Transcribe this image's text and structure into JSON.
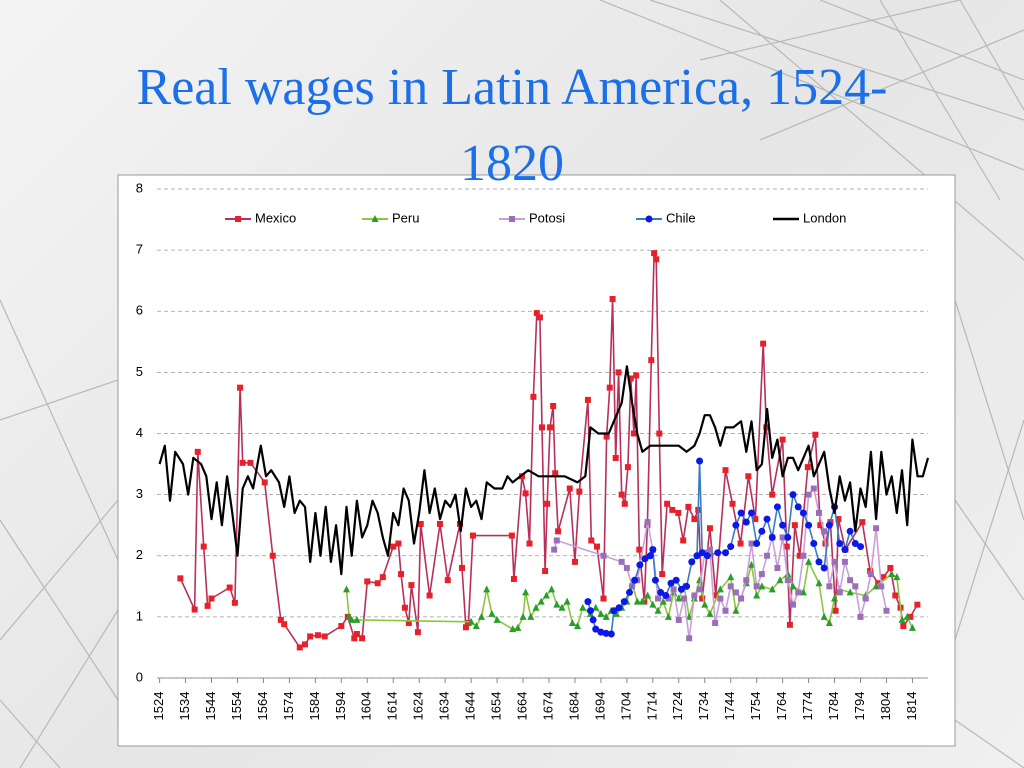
{
  "chart_data": {
    "type": "line",
    "title": "Real wages in Latin America, 1524-1820",
    "xlim": [
      1523,
      1820
    ],
    "xticks": [
      1524,
      1534,
      1544,
      1554,
      1564,
      1574,
      1584,
      1594,
      1604,
      1614,
      1624,
      1634,
      1644,
      1654,
      1664,
      1674,
      1684,
      1694,
      1704,
      1714,
      1724,
      1734,
      1744,
      1754,
      1764,
      1774,
      1784,
      1794,
      1804,
      1814
    ],
    "ylim": [
      0,
      8
    ],
    "yticks": [
      0,
      1,
      2,
      3,
      4,
      5,
      6,
      7,
      8
    ],
    "grid": true,
    "legend": "top",
    "series": [
      {
        "name": "Mexico",
        "color": "#b8305a",
        "marker_color": "#e8202a",
        "marker": "square",
        "x": [
          1532,
          1537.5,
          1538.7,
          1541,
          1542.5,
          1544,
          1551,
          1553,
          1555,
          1556,
          1559,
          1564.5,
          1567.6,
          1570.7,
          1572,
          1578,
          1580,
          1582,
          1585,
          1587.6,
          1594,
          1596.5,
          1599,
          1600,
          1602,
          1604,
          1608,
          1610,
          1614,
          1616,
          1617,
          1618.5,
          1620,
          1621,
          1623.5,
          1624.6,
          1628,
          1632,
          1635,
          1639.7,
          1640.5,
          1642,
          1643,
          1644.7,
          1659.7,
          1660.5,
          1663.6,
          1665,
          1666.5,
          1668,
          1669.3,
          1670.5,
          1671.3,
          1672.5,
          1673.3,
          1674.4,
          1675.6,
          1676.4,
          1677.5,
          1682,
          1684,
          1685.7,
          1689,
          1690.3,
          1692.5,
          1695,
          1696.2,
          1697.4,
          1698.5,
          1699.7,
          1700.8,
          1702,
          1703.2,
          1704.4,
          1705.5,
          1706.7,
          1707.6,
          1708.8,
          1710.7,
          1711.9,
          1713.4,
          1714.5,
          1715.3,
          1716.5,
          1717.6,
          1719.5,
          1721.5,
          1723.8,
          1725.7,
          1727.7,
          1730,
          1731.5,
          1733,
          1736,
          1738.2,
          1742,
          1744.7,
          1747.8,
          1750.8,
          1753.5,
          1756.5,
          1757.7,
          1760,
          1764,
          1765.6,
          1766.8,
          1768.7,
          1770.6,
          1773.7,
          1776.6,
          1778.5,
          1780.5,
          1782.4,
          1784.4,
          1785.5,
          1788.2,
          1794.7,
          1797.7,
          1800.8,
          1802.8,
          1805.5,
          1807.4,
          1809.4,
          1810.5,
          1813.2,
          1815.9
        ],
        "values": [
          1.63,
          1.12,
          3.7,
          2.15,
          1.18,
          1.3,
          1.48,
          1.23,
          4.75,
          3.52,
          3.52,
          3.2,
          2.0,
          0.95,
          0.88,
          0.5,
          0.55,
          0.68,
          0.7,
          0.68,
          0.85,
          1.0,
          0.65,
          0.72,
          0.65,
          1.58,
          1.55,
          1.65,
          2.15,
          2.2,
          1.7,
          1.15,
          0.9,
          1.52,
          0.75,
          2.52,
          1.35,
          2.52,
          1.6,
          2.52,
          1.8,
          0.83,
          0.9,
          2.33,
          2.33,
          1.62,
          3.3,
          3.02,
          2.2,
          4.6,
          5.97,
          5.9,
          4.1,
          1.75,
          2.85,
          4.1,
          4.45,
          3.35,
          2.4,
          3.1,
          1.9,
          3.05,
          4.55,
          2.25,
          2.15,
          1.3,
          3.95,
          4.75,
          6.2,
          3.6,
          5.0,
          3.0,
          2.85,
          3.45,
          4.9,
          4.0,
          4.95,
          2.1,
          1.25,
          2.5,
          5.2,
          6.95,
          6.85,
          4.0,
          1.7,
          2.85,
          2.75,
          2.7,
          2.25,
          2.8,
          2.6,
          2.75,
          1.3,
          2.45,
          1.35,
          3.4,
          2.85,
          2.2,
          3.3,
          2.6,
          5.47,
          4.1,
          3.0,
          3.9,
          2.15,
          0.87,
          2.5,
          2.0,
          3.45,
          3.98,
          2.5,
          2.2,
          2.55,
          1.1,
          2.6,
          2.1,
          2.55,
          1.75,
          1.55,
          1.65,
          1.8,
          1.35,
          1.15,
          0.85,
          1.0,
          1.2
        ]
      },
      {
        "name": "Peru",
        "color": "#8dc63f",
        "marker_color": "#2a9d2a",
        "marker": "triangle",
        "x": [
          1596,
          1597,
          1598,
          1600,
          1644,
          1646,
          1648,
          1650,
          1652,
          1654,
          1660,
          1662,
          1664,
          1665,
          1667,
          1669,
          1671,
          1673,
          1675,
          1677,
          1679,
          1681,
          1683,
          1685,
          1687,
          1690,
          1692,
          1694,
          1696,
          1698,
          1700,
          1702,
          1704,
          1706,
          1708,
          1710,
          1712,
          1714,
          1716,
          1718,
          1720,
          1722,
          1724,
          1726,
          1728,
          1730,
          1732,
          1734,
          1736,
          1740,
          1744,
          1746,
          1750,
          1752,
          1754,
          1756,
          1760,
          1763,
          1766,
          1768,
          1772,
          1774,
          1778,
          1780,
          1782,
          1784,
          1786,
          1790,
          1796,
          1800,
          1806,
          1808,
          1810,
          1812,
          1814
        ],
        "values": [
          1.45,
          1.0,
          0.95,
          0.95,
          0.92,
          0.85,
          1.0,
          1.45,
          1.05,
          0.95,
          0.8,
          0.82,
          1.0,
          1.4,
          1.0,
          1.15,
          1.25,
          1.35,
          1.45,
          1.2,
          1.15,
          1.25,
          0.9,
          0.85,
          1.15,
          1.05,
          1.15,
          1.05,
          1.0,
          1.1,
          1.05,
          1.15,
          1.25,
          1.55,
          1.25,
          1.25,
          1.35,
          1.2,
          1.1,
          1.25,
          1.0,
          1.4,
          1.3,
          1.5,
          1.0,
          1.3,
          1.6,
          1.2,
          1.05,
          1.45,
          1.65,
          1.1,
          1.55,
          1.85,
          1.35,
          1.5,
          1.45,
          1.6,
          1.7,
          1.5,
          1.4,
          1.9,
          1.55,
          1.0,
          0.9,
          1.3,
          1.45,
          1.4,
          1.35,
          1.5,
          1.7,
          1.65,
          0.95,
          1.0,
          0.82
        ]
      },
      {
        "name": "Potosi",
        "color": "#c9a0dc",
        "marker_color": "#9b6fb8",
        "marker": "square",
        "x": [
          1676,
          1677,
          1695,
          1702,
          1704,
          1706,
          1708,
          1712,
          1714,
          1716,
          1720,
          1722,
          1724,
          1726,
          1728,
          1730,
          1732,
          1734,
          1736,
          1738,
          1740,
          1742,
          1744,
          1746,
          1748,
          1750,
          1752,
          1754,
          1756,
          1758,
          1760,
          1762,
          1764,
          1766,
          1768,
          1770,
          1772,
          1774,
          1776,
          1778,
          1780,
          1782,
          1784,
          1786,
          1788,
          1790,
          1792,
          1794,
          1796,
          1798,
          1800,
          1802,
          1804
        ],
        "values": [
          2.1,
          2.25,
          2.0,
          1.9,
          1.8,
          1.5,
          1.6,
          2.55,
          2.1,
          1.3,
          1.3,
          1.45,
          0.95,
          1.3,
          0.65,
          1.35,
          1.45,
          2.05,
          2.1,
          0.9,
          1.3,
          1.1,
          1.5,
          1.4,
          1.3,
          1.6,
          2.2,
          1.5,
          1.7,
          2.0,
          2.3,
          1.8,
          2.3,
          1.6,
          1.2,
          1.4,
          2.0,
          3.0,
          3.1,
          2.7,
          2.4,
          1.5,
          1.9,
          1.4,
          1.9,
          1.6,
          1.5,
          1.0,
          1.3,
          1.7,
          2.45,
          1.5,
          1.1
        ]
      },
      {
        "name": "Chile",
        "color": "#3a7cc2",
        "marker_color": "#0a18e8",
        "marker": "circle",
        "x": [
          1689,
          1690,
          1691,
          1692,
          1694,
          1696,
          1698,
          1699,
          1701,
          1703,
          1705,
          1707,
          1709,
          1711,
          1713,
          1714,
          1715,
          1717,
          1719,
          1721,
          1723,
          1725,
          1727,
          1729,
          1731,
          1732,
          1733,
          1735,
          1739,
          1742,
          1744,
          1746,
          1748,
          1750,
          1752,
          1754,
          1756,
          1758,
          1760,
          1762,
          1764,
          1766,
          1768,
          1770,
          1772,
          1774,
          1776,
          1778,
          1780,
          1782,
          1784,
          1786,
          1788,
          1790,
          1792,
          1794
        ],
        "values": [
          1.25,
          1.1,
          0.95,
          0.8,
          0.75,
          0.73,
          0.72,
          1.1,
          1.15,
          1.25,
          1.4,
          1.6,
          1.85,
          1.95,
          2.0,
          2.1,
          1.6,
          1.4,
          1.35,
          1.55,
          1.6,
          1.45,
          1.5,
          1.9,
          2.0,
          3.55,
          2.05,
          2.0,
          2.05,
          2.05,
          2.15,
          2.5,
          2.7,
          2.55,
          2.7,
          2.2,
          2.4,
          2.6,
          2.3,
          2.8,
          2.5,
          2.3,
          3.0,
          2.8,
          2.7,
          2.5,
          2.2,
          1.9,
          1.8,
          2.5,
          2.8,
          2.2,
          2.1,
          2.4,
          2.2,
          2.15
        ]
      },
      {
        "name": "London",
        "color": "#000000",
        "marker": "none",
        "x": [
          1524,
          1526,
          1528,
          1530,
          1533,
          1535,
          1537,
          1540,
          1542,
          1544,
          1546,
          1548,
          1550,
          1552,
          1554,
          1556,
          1558,
          1560,
          1563,
          1565,
          1567,
          1570,
          1572,
          1574,
          1576,
          1578,
          1580,
          1582,
          1584,
          1586,
          1588,
          1590,
          1592,
          1594,
          1596,
          1598,
          1600,
          1602,
          1604,
          1606,
          1608,
          1610,
          1612,
          1614,
          1616,
          1618,
          1620,
          1622,
          1624,
          1626,
          1628,
          1630,
          1632,
          1634,
          1636,
          1638,
          1640,
          1642,
          1644,
          1646,
          1648,
          1650,
          1653,
          1656,
          1658,
          1660,
          1663,
          1666,
          1670,
          1675,
          1680,
          1685,
          1688,
          1690,
          1693,
          1697,
          1700,
          1702,
          1704,
          1706,
          1708,
          1710,
          1713,
          1716,
          1720,
          1724,
          1727,
          1730,
          1732,
          1734,
          1736,
          1738,
          1740,
          1742,
          1745,
          1748,
          1750,
          1752,
          1754,
          1756,
          1758,
          1760,
          1762,
          1764,
          1766,
          1768,
          1770,
          1772,
          1774,
          1776,
          1778,
          1780,
          1782,
          1784,
          1786,
          1788,
          1790,
          1792,
          1794,
          1796,
          1798,
          1800,
          1802,
          1804,
          1806,
          1808,
          1810,
          1812,
          1814,
          1816,
          1818,
          1820
        ],
        "values": [
          3.5,
          3.8,
          2.9,
          3.7,
          3.5,
          3.0,
          3.6,
          3.5,
          3.3,
          2.6,
          3.2,
          2.5,
          3.3,
          2.7,
          2.0,
          3.1,
          3.3,
          3.1,
          3.8,
          3.3,
          3.4,
          3.2,
          2.8,
          3.3,
          2.7,
          2.9,
          2.8,
          1.9,
          2.7,
          2.0,
          2.8,
          1.9,
          2.5,
          1.7,
          2.8,
          2.0,
          2.9,
          2.3,
          2.5,
          2.9,
          2.7,
          2.3,
          2.0,
          2.7,
          2.5,
          3.1,
          2.9,
          2.2,
          2.7,
          3.4,
          2.7,
          3.1,
          2.6,
          2.9,
          2.8,
          3.0,
          2.4,
          3.1,
          2.8,
          2.9,
          2.6,
          3.2,
          3.1,
          3.1,
          3.3,
          3.2,
          3.3,
          3.4,
          3.3,
          3.3,
          3.3,
          3.2,
          3.3,
          4.1,
          4.0,
          4.0,
          4.3,
          4.5,
          5.1,
          4.5,
          4.0,
          3.7,
          3.8,
          3.8,
          3.8,
          3.8,
          3.7,
          3.8,
          4.0,
          4.3,
          4.3,
          4.1,
          3.8,
          4.1,
          4.1,
          4.2,
          3.7,
          4.2,
          3.4,
          3.5,
          4.4,
          3.6,
          3.9,
          3.3,
          3.6,
          3.6,
          3.4,
          3.6,
          3.8,
          3.3,
          3.5,
          3.7,
          3.1,
          2.7,
          3.3,
          2.9,
          3.2,
          2.4,
          3.1,
          2.8,
          3.7,
          2.6,
          3.7,
          3.0,
          3.3,
          2.7,
          3.4,
          2.5,
          3.9,
          3.3,
          3.3,
          3.6
        ]
      }
    ]
  }
}
